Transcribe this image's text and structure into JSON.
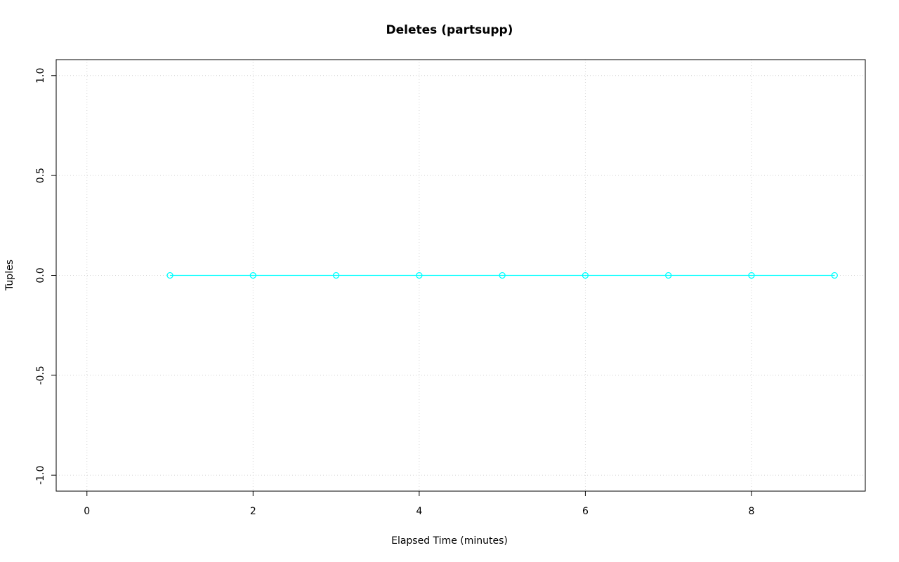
{
  "chart_data": {
    "type": "line",
    "title": "Deletes (partsupp)",
    "xlabel": "Elapsed Time (minutes)",
    "ylabel": "Tuples",
    "x": [
      1,
      2,
      3,
      4,
      5,
      6,
      7,
      8,
      9
    ],
    "y": [
      0,
      0,
      0,
      0,
      0,
      0,
      0,
      0,
      0
    ],
    "xlim": [
      -0.37,
      9.37
    ],
    "ylim": [
      -1.08,
      1.08
    ],
    "xticks": [
      0,
      2,
      4,
      6,
      8
    ],
    "xtick_labels": [
      "0",
      "2",
      "4",
      "6",
      "8"
    ],
    "yticks": [
      -1.0,
      -0.5,
      0.0,
      0.5,
      1.0
    ],
    "ytick_labels": [
      "-1.0",
      "-0.5",
      "0.0",
      "0.5",
      "1.0"
    ],
    "grid": true,
    "grid_color": "#d4d4d4",
    "axis_color": "#000000",
    "series_color": "#00ffff",
    "marker": "circle-open",
    "legend": null
  }
}
